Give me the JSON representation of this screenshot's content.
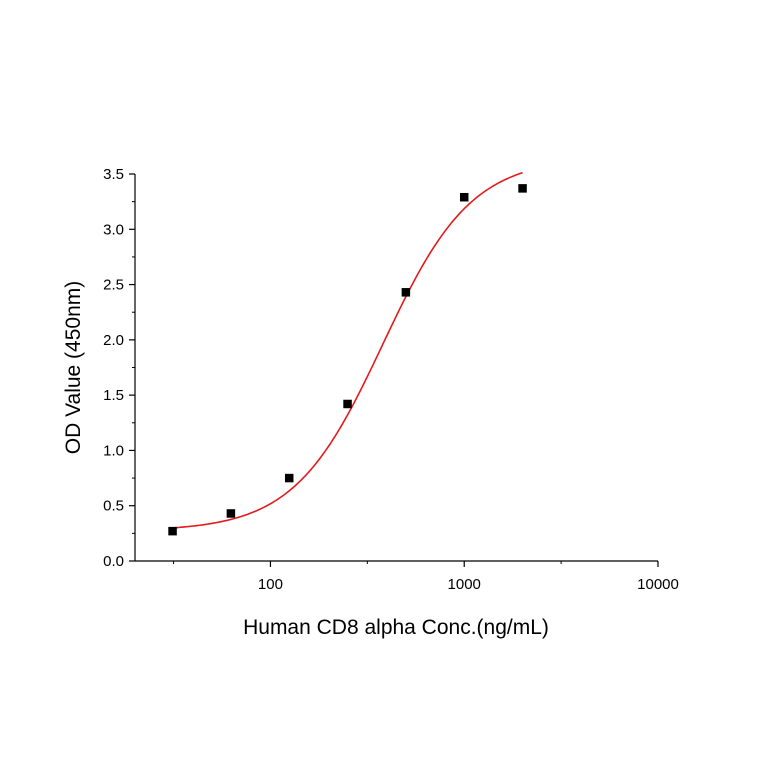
{
  "chart_data": {
    "type": "scatter",
    "title": "",
    "xlabel": "Human CD8 alpha Conc.(ng/mL)",
    "ylabel": "OD Value (450nm)",
    "xscale": "log",
    "xlim": [
      20,
      10000
    ],
    "ylim": [
      0,
      3.5
    ],
    "x_ticks": [
      100,
      1000,
      10000
    ],
    "x_tick_labels": [
      "100",
      "1000",
      "10000"
    ],
    "y_ticks": [
      0,
      0.5,
      1.0,
      1.5,
      2.0,
      2.5,
      3.0,
      3.5
    ],
    "y_tick_labels": [
      "0.0",
      "0.5",
      "1.0",
      "1.5",
      "2.0",
      "2.5",
      "3.0",
      "3.5"
    ],
    "grid": false,
    "legend": "none",
    "series": [
      {
        "kind": "points",
        "x": [
          31.25,
          62.5,
          125,
          250,
          500,
          1000,
          2000
        ],
        "y": [
          0.27,
          0.43,
          0.75,
          1.42,
          2.43,
          3.29,
          3.37
        ],
        "color": "#000000",
        "marker": "square"
      },
      {
        "kind": "fit-curve",
        "model": "4PL",
        "params": {
          "bottom": 0.27,
          "top": 3.65,
          "ec50": 380,
          "hill": 1.9
        },
        "x_range": [
          31.25,
          2000
        ],
        "color": "#e41a1c"
      }
    ]
  }
}
